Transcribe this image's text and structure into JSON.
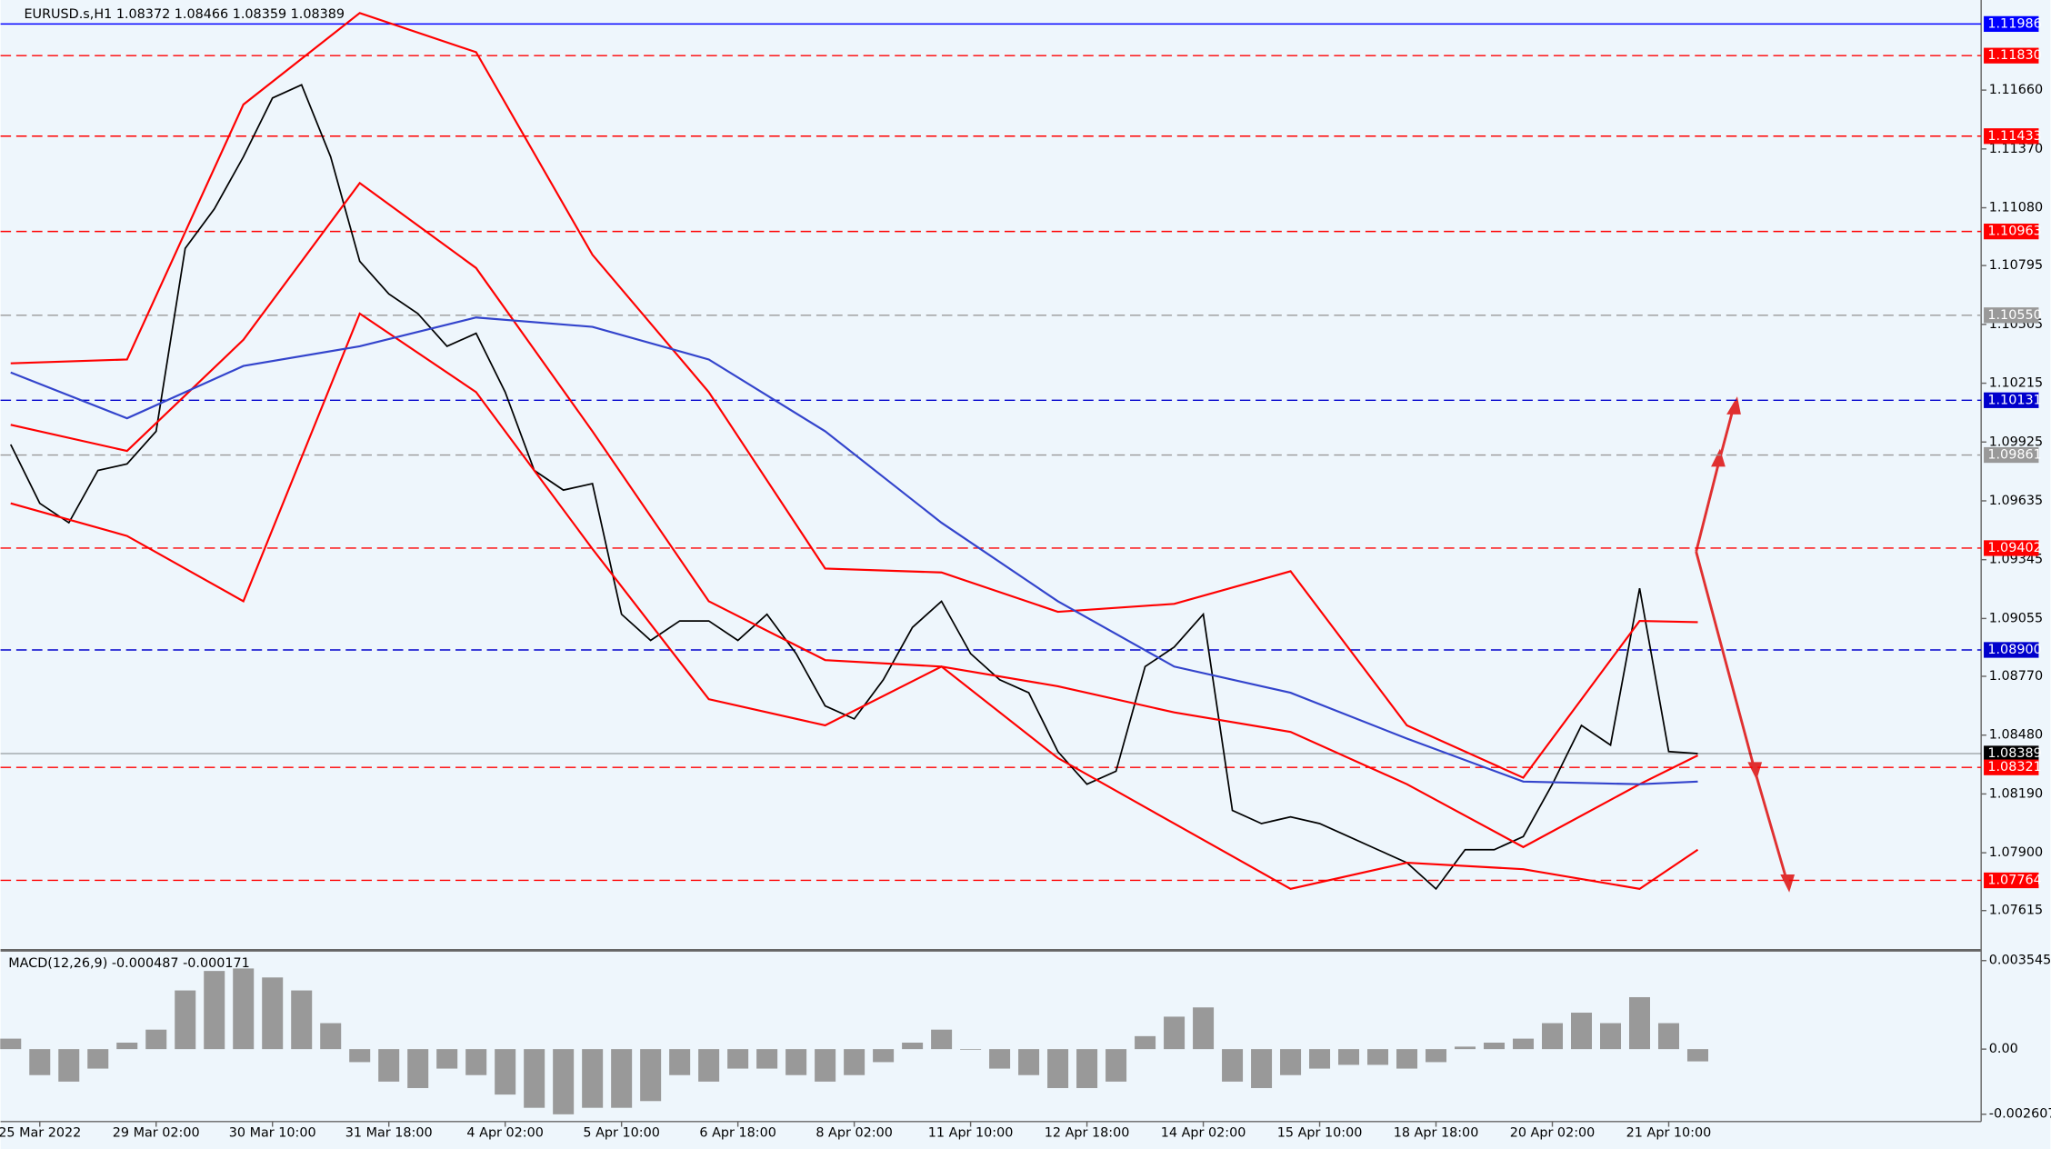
{
  "chart_data": [
    {
      "type": "line",
      "title": "EURUSD.s,H1  1.08372 1.08466 1.08359 1.08389",
      "categories": [
        null,
        "25 Mar 2022",
        null,
        null,
        null,
        "29 Mar 02:00",
        null,
        null,
        null,
        "30 Mar 10:00",
        null,
        null,
        null,
        "31 Mar 18:00",
        null,
        null,
        null,
        "4 Apr 02:00",
        null,
        null,
        null,
        "5 Apr 10:00",
        null,
        null,
        null,
        "6 Apr 18:00",
        null,
        null,
        null,
        "8 Apr 02:00",
        null,
        null,
        null,
        "11 Apr 10:00",
        null,
        null,
        null,
        "12 Apr 18:00",
        null,
        null,
        null,
        "14 Apr 02:00",
        null,
        null,
        null,
        "15 Apr 10:00",
        null,
        null,
        null,
        "18 Apr 18:00",
        null,
        null,
        null,
        "20 Apr 02:00",
        null,
        null,
        null,
        "21 Apr 10:00",
        null
      ],
      "ylim": [
        1.07432,
        1.12072
      ],
      "yticks": [
        {
          "value": 1.1166,
          "label": "1.11660"
        },
        {
          "value": 1.1137,
          "label": "1.11370"
        },
        {
          "value": 1.1108,
          "label": "1.11080"
        },
        1.10795,
        1.10505,
        1.10215,
        1.09925,
        1.09635,
        1.09345,
        1.09055,
        {
          "value": 1.0877,
          "label": "1.08770"
        },
        {
          "value": 1.0848,
          "label": "1.08480"
        },
        {
          "value": 1.0819,
          "label": "1.08190"
        },
        {
          "value": 1.079,
          "label": "1.07900"
        },
        1.07615
      ],
      "series": [
        {
          "name": "close",
          "color": "#000000",
          "values": [
            1.09913,
            1.09623,
            1.09527,
            1.09785,
            1.09817,
            1.09978,
            1.1088,
            1.11074,
            1.11331,
            1.11621,
            1.11686,
            1.11331,
            1.10816,
            1.10655,
            1.10558,
            1.10397,
            1.10461,
            1.10171,
            1.09785,
            1.09688,
            1.0972,
            1.09076,
            1.08947,
            1.09043,
            1.09043,
            1.08947,
            1.09076,
            1.08882,
            1.08624,
            1.0856,
            1.08753,
            1.09011,
            1.0914,
            1.08882,
            1.08753,
            1.08689,
            1.08399,
            1.08238,
            1.08302,
            1.08818,
            1.08914,
            1.09076,
            1.08109,
            1.08044,
            1.08077,
            1.08044,
            1.0798,
            1.07915,
            1.07851,
            1.07722,
            1.07915,
            1.07915,
            1.0798,
            1.08238,
            1.08528,
            1.08431,
            1.09204,
            1.08399,
            1.08389
          ]
        },
        {
          "name": "upper",
          "color": "#ff0000",
          "x": [
            0,
            4,
            8,
            12,
            16,
            20,
            24,
            28,
            32,
            36,
            40,
            44,
            48,
            52,
            56,
            58
          ],
          "values": [
            1.10313,
            1.10332,
            1.11589,
            1.1204,
            1.11847,
            1.10848,
            1.10171,
            1.09301,
            1.09282,
            1.09088,
            1.09127,
            1.09288,
            1.08528,
            1.0827,
            1.09043,
            1.09037
          ]
        },
        {
          "name": "middle",
          "color": "#ff0000",
          "x": [
            0,
            4,
            8,
            12,
            16,
            20,
            24,
            28,
            32,
            36,
            40,
            44,
            48,
            52,
            56,
            58
          ],
          "values": [
            1.1001,
            1.09881,
            1.10429,
            1.11202,
            1.10783,
            1.09978,
            1.0914,
            1.0885,
            1.08818,
            1.08721,
            1.08592,
            1.08496,
            1.08238,
            1.07928,
            1.08238,
            1.0838
          ]
        },
        {
          "name": "lower",
          "color": "#ff0000",
          "x": [
            0,
            4,
            8,
            12,
            16,
            20,
            24,
            28,
            32,
            36,
            40,
            44,
            48,
            52,
            56,
            58
          ],
          "values": [
            1.09623,
            1.09462,
            1.0914,
            1.10558,
            1.10171,
            1.09398,
            1.08657,
            1.08528,
            1.08818,
            1.08367,
            1.08044,
            1.07722,
            1.07851,
            1.07819,
            1.07722,
            1.07915
          ]
        },
        {
          "name": "ma",
          "color": "#3344cc",
          "x": [
            0,
            4,
            8,
            12,
            16,
            20,
            24,
            28,
            32,
            36,
            40,
            44,
            48,
            52,
            56,
            58
          ],
          "values": [
            1.10268,
            1.10042,
            1.103,
            1.10397,
            1.10539,
            1.10493,
            1.10332,
            1.09978,
            1.09527,
            1.0914,
            1.08818,
            1.08689,
            1.08463,
            1.08251,
            1.08238,
            1.08251
          ]
        }
      ],
      "levels": [
        {
          "value": 1.11986,
          "color": "#0000ff",
          "dash": false
        },
        {
          "value": 1.1183,
          "label": "1.11830",
          "color": "#ff0000",
          "dash": true
        },
        {
          "value": 1.11433,
          "color": "#ff0000",
          "dash": true
        },
        {
          "value": 1.10963,
          "color": "#ff0000",
          "dash": true
        },
        {
          "value": 1.1055,
          "label": "1.10550",
          "color": "#999999",
          "dash": true
        },
        {
          "value": 1.10131,
          "color": "#0000cc",
          "dash": true
        },
        {
          "value": 1.09861,
          "color": "#999999",
          "dash": true
        },
        {
          "value": 1.09402,
          "color": "#ff0000",
          "dash": true
        },
        {
          "value": 1.089,
          "label": "1.08900",
          "color": "#0000cc",
          "dash": true
        },
        {
          "value": 1.08389,
          "color": "#000000",
          "dash": false
        },
        {
          "value": 1.08321,
          "color": "#ff0000",
          "dash": true
        },
        {
          "value": 1.07764,
          "color": "#ff0000",
          "dash": true
        }
      ]
    },
    {
      "type": "bar",
      "title": "MACD(12,26,9) -0.000487 -0.000171",
      "ylim": [
        -0.0029,
        0.0038
      ],
      "yticks": [
        0.003545,
        {
          "value": 0,
          "label": "0.00"
        },
        -0.002607
      ],
      "color": "#999999",
      "values": [
        0.00042,
        -0.00104,
        -0.0013,
        -0.00078,
        0.00026,
        0.00078,
        0.00235,
        0.00313,
        0.00323,
        0.00287,
        0.00235,
        0.00104,
        -0.00052,
        -0.0013,
        -0.00156,
        -0.00078,
        -0.00104,
        -0.00182,
        -0.00235,
        -0.00261,
        -0.00235,
        -0.00235,
        -0.00208,
        -0.00104,
        -0.0013,
        -0.00078,
        -0.00078,
        -0.00104,
        -0.0013,
        -0.00104,
        -0.00052,
        0.00026,
        0.00078,
        0,
        -0.00078,
        -0.00104,
        -0.00156,
        -0.00156,
        -0.0013,
        0.00052,
        0.0013,
        0.00167,
        -0.0013,
        -0.00156,
        -0.00104,
        -0.00078,
        -0.00063,
        -0.00063,
        -0.00078,
        -0.00052,
        0.0001,
        0.00026,
        0.00042,
        0.00104,
        0.00146,
        0.00104,
        0.00208,
        0.00104,
        -0.00049
      ]
    }
  ]
}
